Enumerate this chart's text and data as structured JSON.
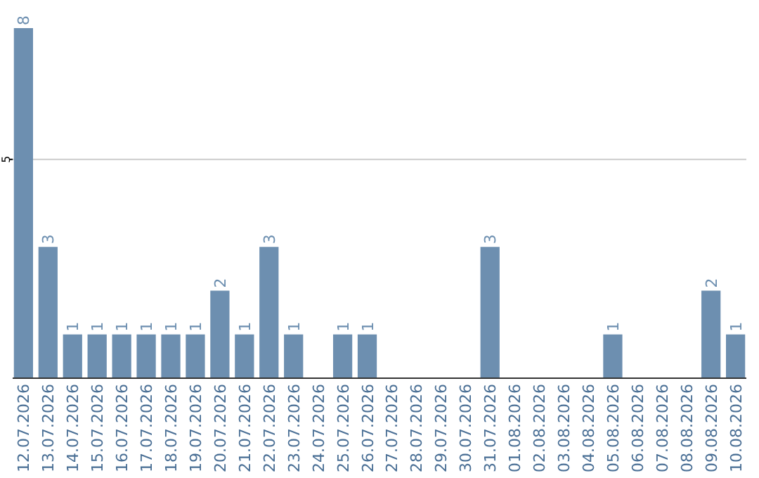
{
  "chart_data": {
    "type": "bar",
    "categories": [
      "12.07.2026",
      "13.07.2026",
      "14.07.2026",
      "15.07.2026",
      "16.07.2026",
      "17.07.2026",
      "18.07.2026",
      "19.07.2026",
      "20.07.2026",
      "21.07.2026",
      "22.07.2026",
      "23.07.2026",
      "24.07.2026",
      "25.07.2026",
      "26.07.2026",
      "27.07.2026",
      "28.07.2026",
      "29.07.2026",
      "30.07.2026",
      "31.07.2026",
      "01.08.2026",
      "02.08.2026",
      "03.08.2026",
      "04.08.2026",
      "05.08.2026",
      "06.08.2026",
      "07.08.2026",
      "08.08.2026",
      "09.08.2026",
      "10.08.2026"
    ],
    "values": [
      8,
      3,
      1,
      1,
      1,
      1,
      1,
      1,
      2,
      1,
      3,
      1,
      null,
      1,
      1,
      null,
      null,
      null,
      null,
      3,
      null,
      null,
      null,
      null,
      1,
      null,
      null,
      null,
      2,
      1
    ],
    "color": "#6d8fb0",
    "ref_lines": [
      {
        "axis": "y",
        "value": 5,
        "label": "5",
        "color": "#cccccc"
      }
    ],
    "data_labels": true
  }
}
